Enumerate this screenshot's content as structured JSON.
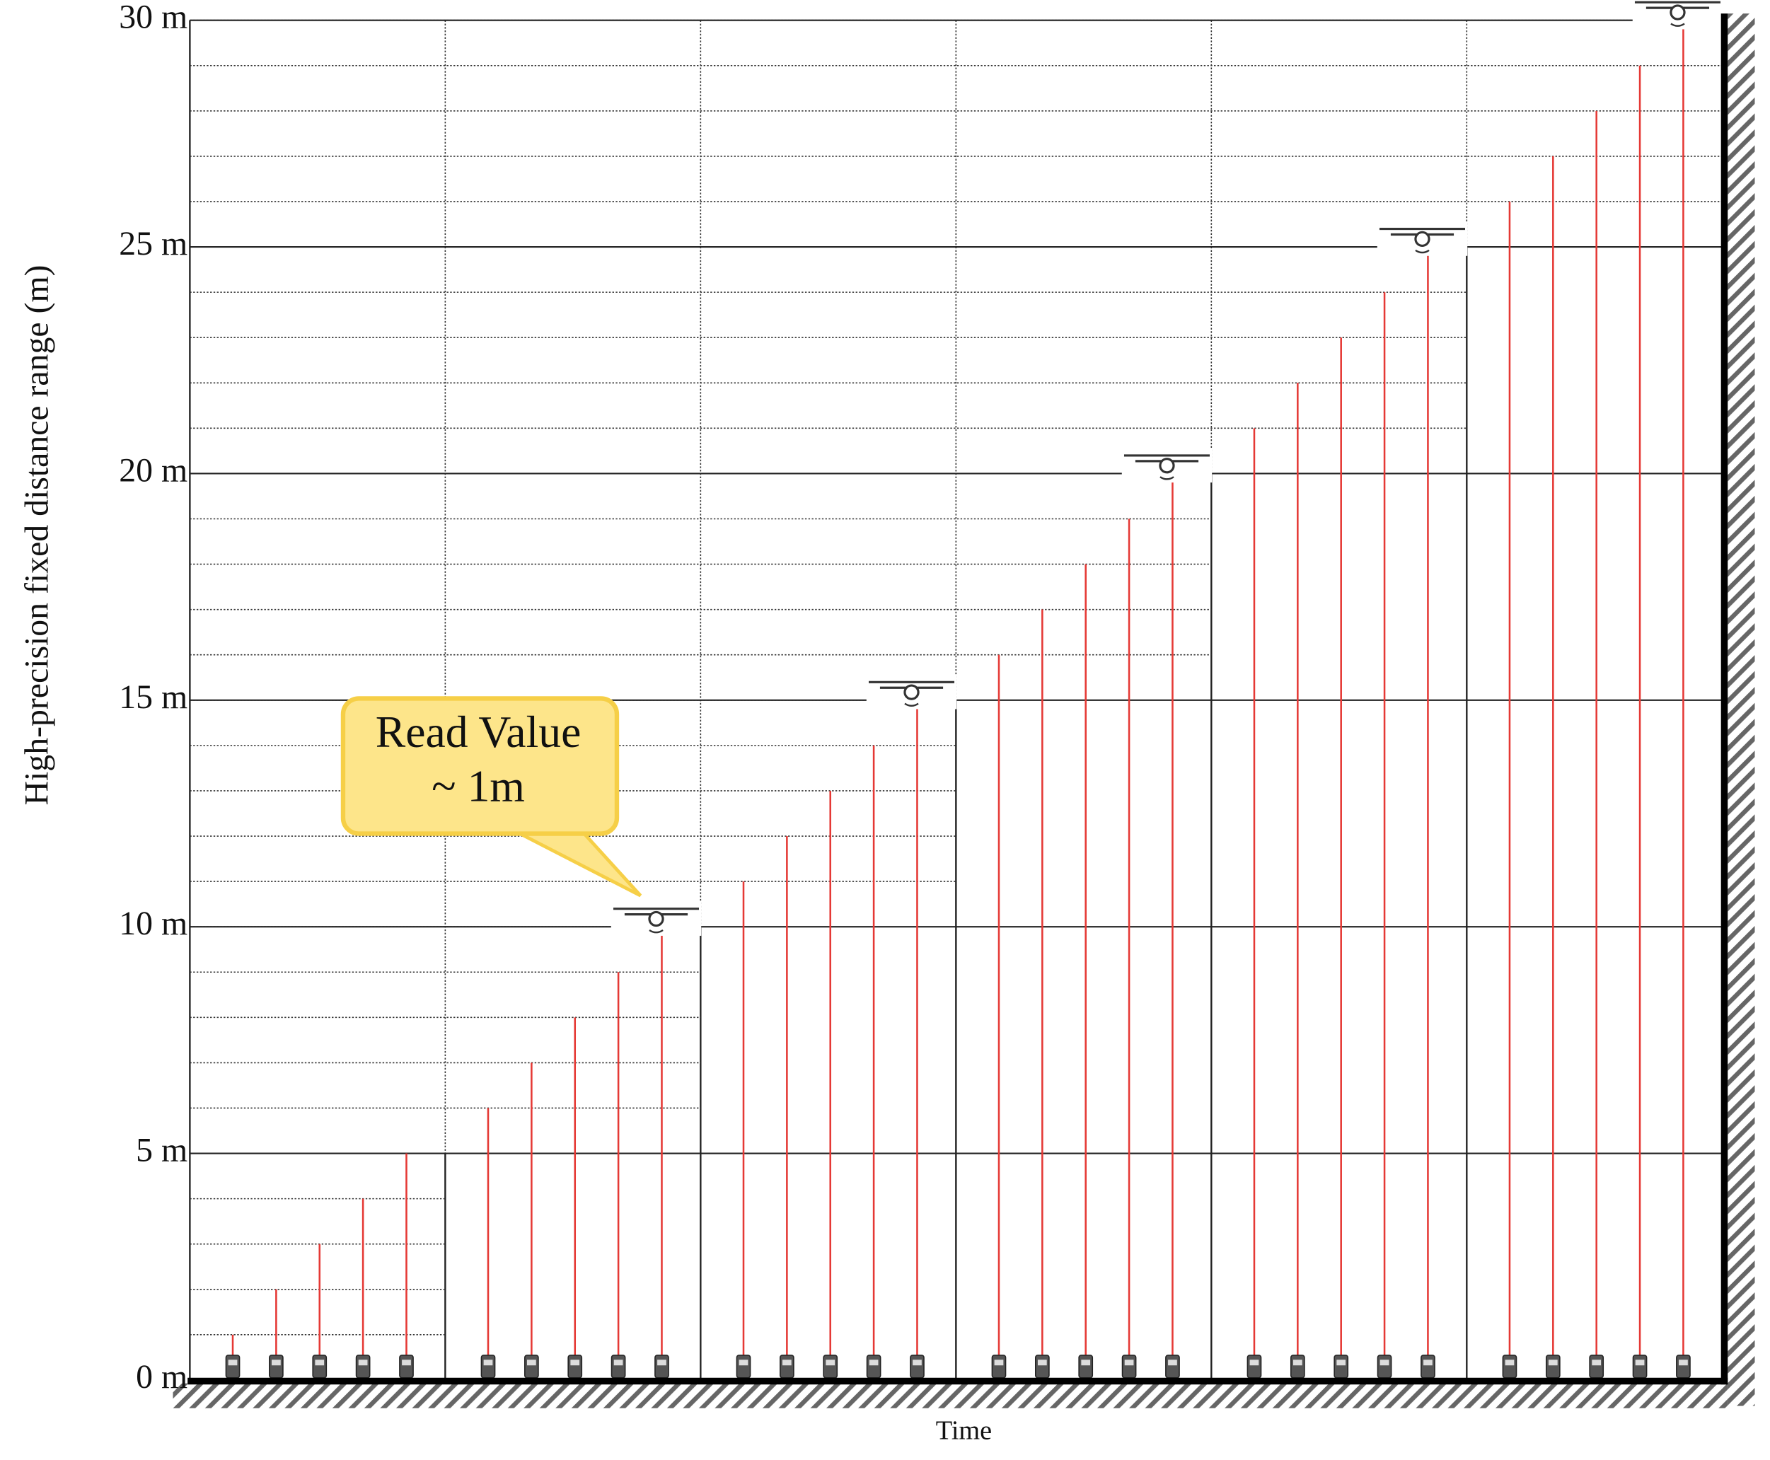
{
  "chart_data": {
    "type": "stem",
    "y_label": "High-precision fixed distance range (m)",
    "x_label": "Time",
    "values": [
      1,
      2,
      3,
      4,
      5,
      6,
      7,
      8,
      9,
      10,
      11,
      12,
      13,
      14,
      15,
      16,
      17,
      18,
      19,
      20,
      21,
      22,
      23,
      24,
      25,
      26,
      27,
      28,
      29,
      30
    ],
    "color": "#e53935",
    "group_size": 5,
    "ylim": [
      0,
      30
    ],
    "yticks": [
      {
        "value": 0,
        "label": "0 m"
      },
      {
        "value": 5,
        "label": "5 m"
      },
      {
        "value": 10,
        "label": "10 m"
      },
      {
        "value": 15,
        "label": "15 m"
      },
      {
        "value": 20,
        "label": "20 m"
      },
      {
        "value": 25,
        "label": "25 m"
      },
      {
        "value": 30,
        "label": "30 m"
      }
    ],
    "grid": true,
    "annotation": [
      "Read Value",
      "~ 1m"
    ]
  }
}
